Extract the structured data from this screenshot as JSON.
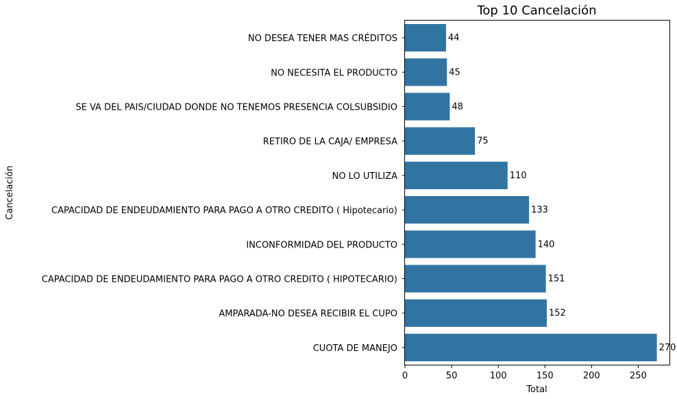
{
  "chart_data": {
    "type": "bar",
    "orientation": "horizontal",
    "title": "Top 10 Cancelación",
    "xlabel": "Total",
    "ylabel": "Cancelación",
    "categories": [
      "NO DESEA TENER MAS CRÉDITOS",
      "NO NECESITA EL PRODUCTO",
      "SE VA DEL PAIS/CIUDAD DONDE NO TENEMOS PRESENCIA COLSUBSIDIO",
      "RETIRO DE LA CAJA/ EMPRESA",
      "NO LO UTILIZA",
      "CAPACIDAD DE ENDEUDAMIENTO PARA PAGO A OTRO CREDITO ( Hipotecario)",
      "INCONFORMIDAD DEL PRODUCTO",
      "CAPACIDAD DE ENDEUDAMIENTO PARA PAGO A OTRO CREDITO ( HIPOTECARIO)",
      "AMPARADA-NO DESEA RECIBIR EL CUPO",
      "CUOTA DE MANEJO"
    ],
    "values": [
      44,
      45,
      48,
      75,
      110,
      133,
      140,
      151,
      152,
      270
    ],
    "data_labels": [
      "44",
      "45",
      "48",
      "75",
      "110",
      "133",
      "140",
      "151",
      "152",
      "270"
    ],
    "xticks": [
      0,
      50,
      100,
      150,
      200,
      250
    ],
    "xtick_labels": [
      "0",
      "50",
      "100",
      "150",
      "200",
      "250"
    ],
    "xlim": [
      0,
      283.5
    ],
    "grid": false,
    "legend": "none",
    "bar_color": "#3274a1"
  }
}
